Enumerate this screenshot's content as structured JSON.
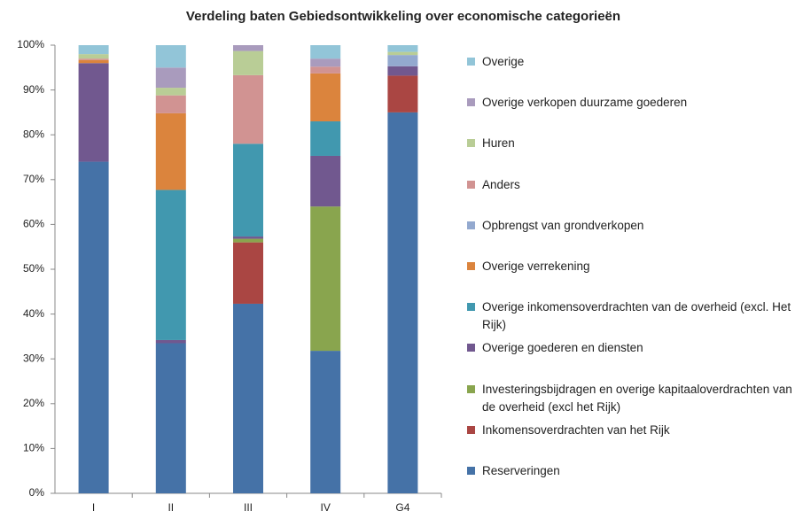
{
  "chart_data": {
    "type": "stacked_bar",
    "title": "Verdeling baten Gebiedsontwikkeling over economische categorieën",
    "categories": [
      "I",
      "II",
      "III",
      "IV",
      "G4"
    ],
    "series": [
      {
        "name": "Reserveringen",
        "color": "#4572a7",
        "values": [
          74,
          33.5,
          42.3,
          31.8,
          85
        ]
      },
      {
        "name": "Inkomensoverdrachten van het Rijk",
        "color": "#aa4643",
        "values": [
          0,
          0,
          13.7,
          0,
          8.2
        ]
      },
      {
        "name": "Investeringsbijdragen en overige kapitaaloverdrachten van de overheid (excl het Rijk)",
        "color": "#89a54e",
        "values": [
          0,
          0,
          0.8,
          32.2,
          0
        ]
      },
      {
        "name": "Overige goederen en diensten",
        "color": "#71588f",
        "values": [
          22,
          0.7,
          0.5,
          11.3,
          2.1
        ]
      },
      {
        "name": "Overige inkomensoverdrachten van de overheid (excl. Het Rijk)",
        "color": "#4198af",
        "values": [
          0,
          33.5,
          20.7,
          7.7,
          0
        ]
      },
      {
        "name": "Overige verrekening",
        "color": "#db843d",
        "values": [
          0.7,
          17.1,
          0,
          10.7,
          0
        ]
      },
      {
        "name": "Opbrengst van grondverkopen",
        "color": "#93a9cf",
        "values": [
          0,
          0,
          0,
          0,
          2.5
        ]
      },
      {
        "name": "Anders",
        "color": "#d19392",
        "values": [
          0.3,
          4,
          15.3,
          1.5,
          0
        ]
      },
      {
        "name": "Huren",
        "color": "#b9cd96",
        "values": [
          1,
          1.7,
          5.4,
          0,
          0.7
        ]
      },
      {
        "name": "Overige verkopen duurzame goederen",
        "color": "#a99bbd",
        "values": [
          0,
          4.5,
          1.3,
          1.8,
          0
        ]
      },
      {
        "name": "Overige",
        "color": "#92c5d8",
        "values": [
          2,
          5,
          0,
          3,
          1.5
        ]
      }
    ],
    "ylim": [
      0,
      100
    ],
    "yticks": [
      {
        "value": 0,
        "label": "0%"
      },
      {
        "value": 10,
        "label": "10%"
      },
      {
        "value": 20,
        "label": "20%"
      },
      {
        "value": 30,
        "label": "30%"
      },
      {
        "value": 40,
        "label": "40%"
      },
      {
        "value": 50,
        "label": "50%"
      },
      {
        "value": 60,
        "label": "60%"
      },
      {
        "value": 70,
        "label": "70%"
      },
      {
        "value": 80,
        "label": "80%"
      },
      {
        "value": 90,
        "label": "90%"
      },
      {
        "value": 100,
        "label": "100%"
      }
    ],
    "grid": false
  }
}
